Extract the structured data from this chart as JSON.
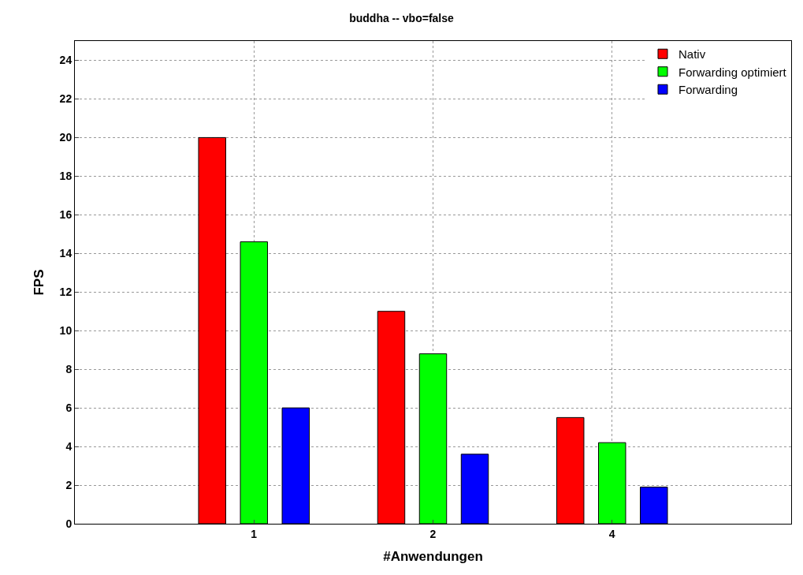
{
  "chart_data": {
    "type": "bar",
    "title": "buddha -- vbo=false",
    "xlabel": "#Anwendungen",
    "ylabel": "FPS",
    "categories": [
      "1",
      "2",
      "4"
    ],
    "series": [
      {
        "name": "Nativ",
        "color": "#ff0000",
        "values": [
          20,
          11,
          5.5
        ]
      },
      {
        "name": "Forwarding optimiert",
        "color": "#00ff00",
        "values": [
          14.6,
          8.8,
          4.2
        ]
      },
      {
        "name": "Forwarding",
        "color": "#0000ff",
        "values": [
          6,
          3.6,
          1.9
        ]
      }
    ],
    "ylim": [
      0,
      25
    ],
    "yticks": [
      0,
      2,
      4,
      6,
      8,
      10,
      12,
      14,
      16,
      18,
      20,
      22,
      24
    ],
    "grid": true,
    "legend": "top right"
  }
}
